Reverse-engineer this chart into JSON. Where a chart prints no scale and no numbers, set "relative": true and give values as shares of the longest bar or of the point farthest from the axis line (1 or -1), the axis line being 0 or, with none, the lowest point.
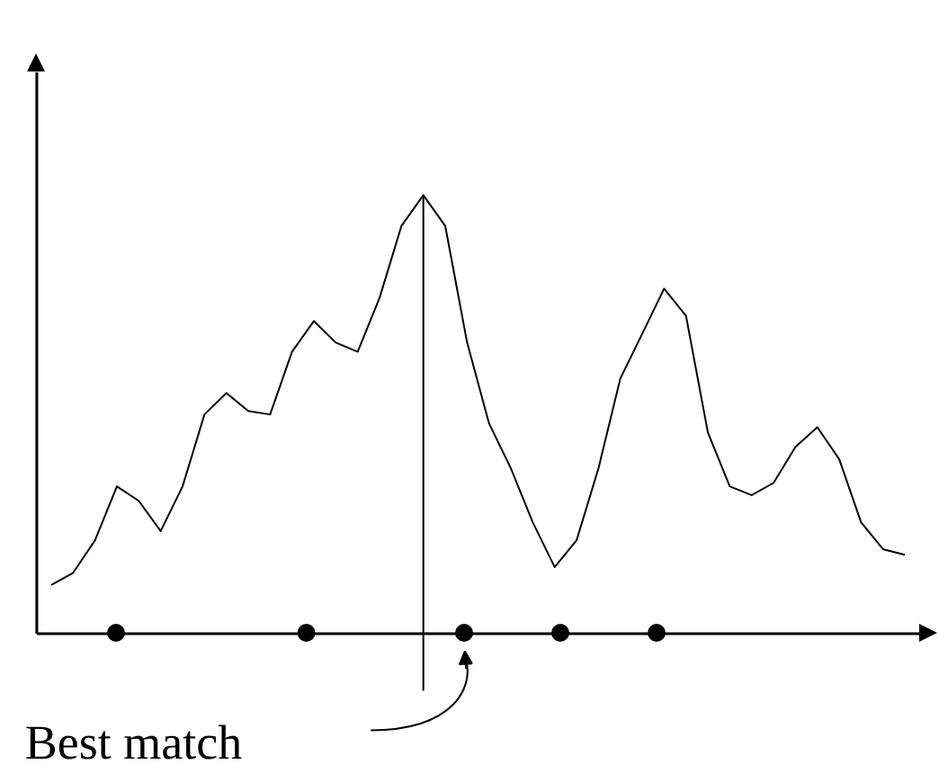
{
  "chart_data": {
    "type": "line",
    "relative": true,
    "tick_labels": false,
    "categories": [
      null,
      null,
      null,
      null,
      null,
      null,
      null,
      null,
      null,
      null,
      null,
      null,
      null,
      null,
      null,
      null,
      null,
      null,
      null,
      null,
      null,
      null,
      null,
      null,
      null,
      null,
      null,
      null,
      null,
      null,
      null,
      null,
      null,
      null,
      null,
      null,
      null,
      null,
      null,
      null
    ],
    "series": [
      {
        "color": "#000000",
        "values": [
          0.111,
          0.139,
          0.213,
          0.336,
          0.303,
          0.234,
          0.336,
          0.5,
          0.549,
          0.508,
          0.5,
          0.643,
          0.713,
          0.664,
          0.643,
          0.766,
          0.93,
          1,
          0.93,
          0.664,
          0.48,
          0.377,
          0.254,
          0.152,
          0.213,
          0.377,
          0.582,
          0.684,
          0.787,
          0.725,
          0.459,
          0.336,
          0.316,
          0.344,
          0.426,
          0.471,
          0.398,
          0.254,
          0.193,
          0.18
        ]
      }
    ],
    "annotations": [
      "Best match"
    ]
  }
}
